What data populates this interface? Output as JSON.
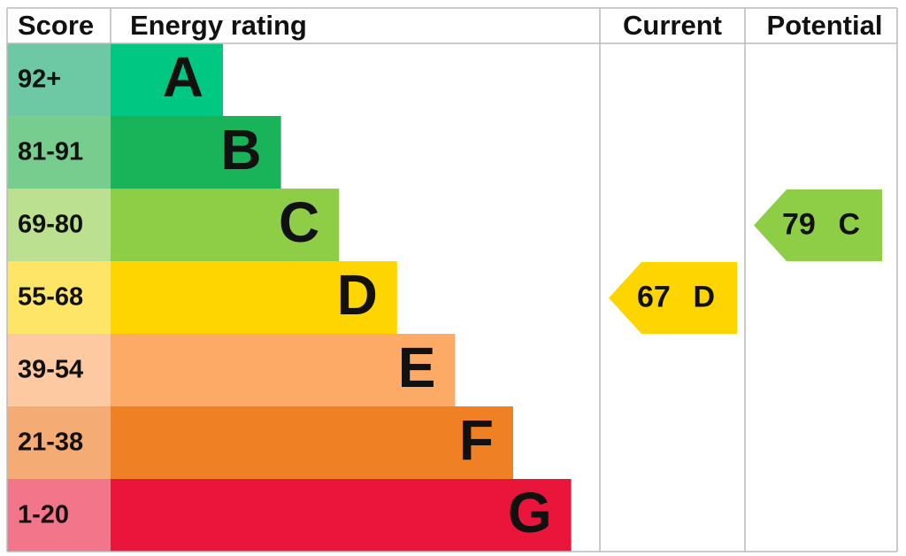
{
  "headers": {
    "score": "Score",
    "rating": "Energy rating",
    "current": "Current",
    "potential": "Potential"
  },
  "bands": [
    {
      "score": "92+",
      "letter": "A",
      "color": "#00c781",
      "score_color": "#6cc9a4"
    },
    {
      "score": "81-91",
      "letter": "B",
      "color": "#19b459",
      "score_color": "#76cd8e"
    },
    {
      "score": "69-80",
      "letter": "C",
      "color": "#8dce46",
      "score_color": "#bbe08f"
    },
    {
      "score": "55-68",
      "letter": "D",
      "color": "#ffd500",
      "score_color": "#ffe566"
    },
    {
      "score": "39-54",
      "letter": "E",
      "color": "#fcaa65",
      "score_color": "#fdc9a0"
    },
    {
      "score": "21-38",
      "letter": "F",
      "color": "#ef8023",
      "score_color": "#f5ac74"
    },
    {
      "score": "1-20",
      "letter": "G",
      "color": "#e9153b",
      "score_color": "#f27589"
    }
  ],
  "current": {
    "value": 67,
    "letter": "D",
    "color": "#ffd500"
  },
  "potential": {
    "value": 79,
    "letter": "C",
    "color": "#8dce46"
  }
}
